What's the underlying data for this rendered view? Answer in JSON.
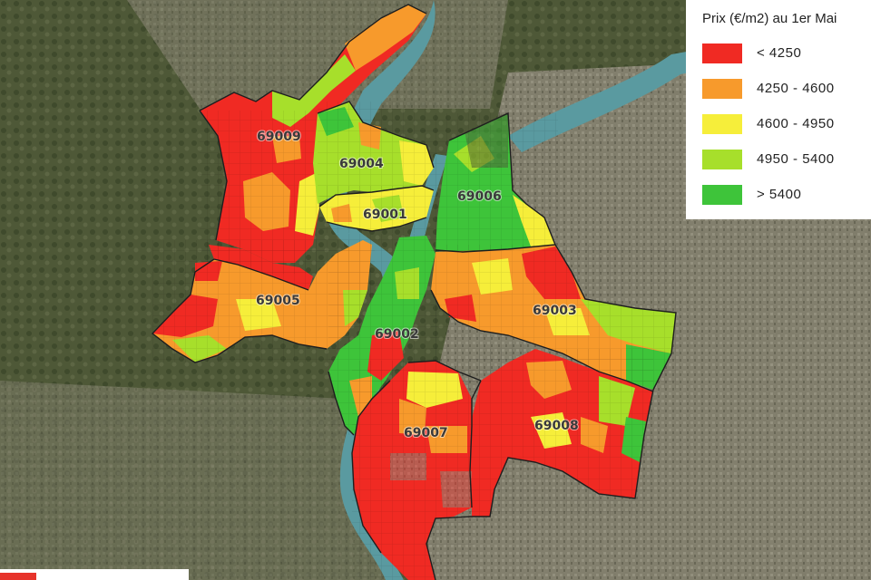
{
  "legend": {
    "title": "Prix (€/m2) au 1er Mai",
    "items": [
      {
        "label": "< 4250",
        "color": "#f02a23"
      },
      {
        "label": "4250 - 4600",
        "color": "#f79a2c"
      },
      {
        "label": "4600 - 4950",
        "color": "#f6ee3a"
      },
      {
        "label": "4950 - 5400",
        "color": "#a7df2b"
      },
      {
        "label": "> 5400",
        "color": "#3ec43a"
      }
    ]
  },
  "districts": {
    "d69001": "69001",
    "d69002": "69002",
    "d69003": "69003",
    "d69004": "69004",
    "d69005": "69005",
    "d69006": "69006",
    "d69007": "69007",
    "d69008": "69008",
    "d69009": "69009"
  },
  "colors": {
    "river": "#5a9aa0",
    "satellite_base": "#4b4f3a",
    "urban": "#8a8476",
    "boundary": "#1e1e1e"
  }
}
